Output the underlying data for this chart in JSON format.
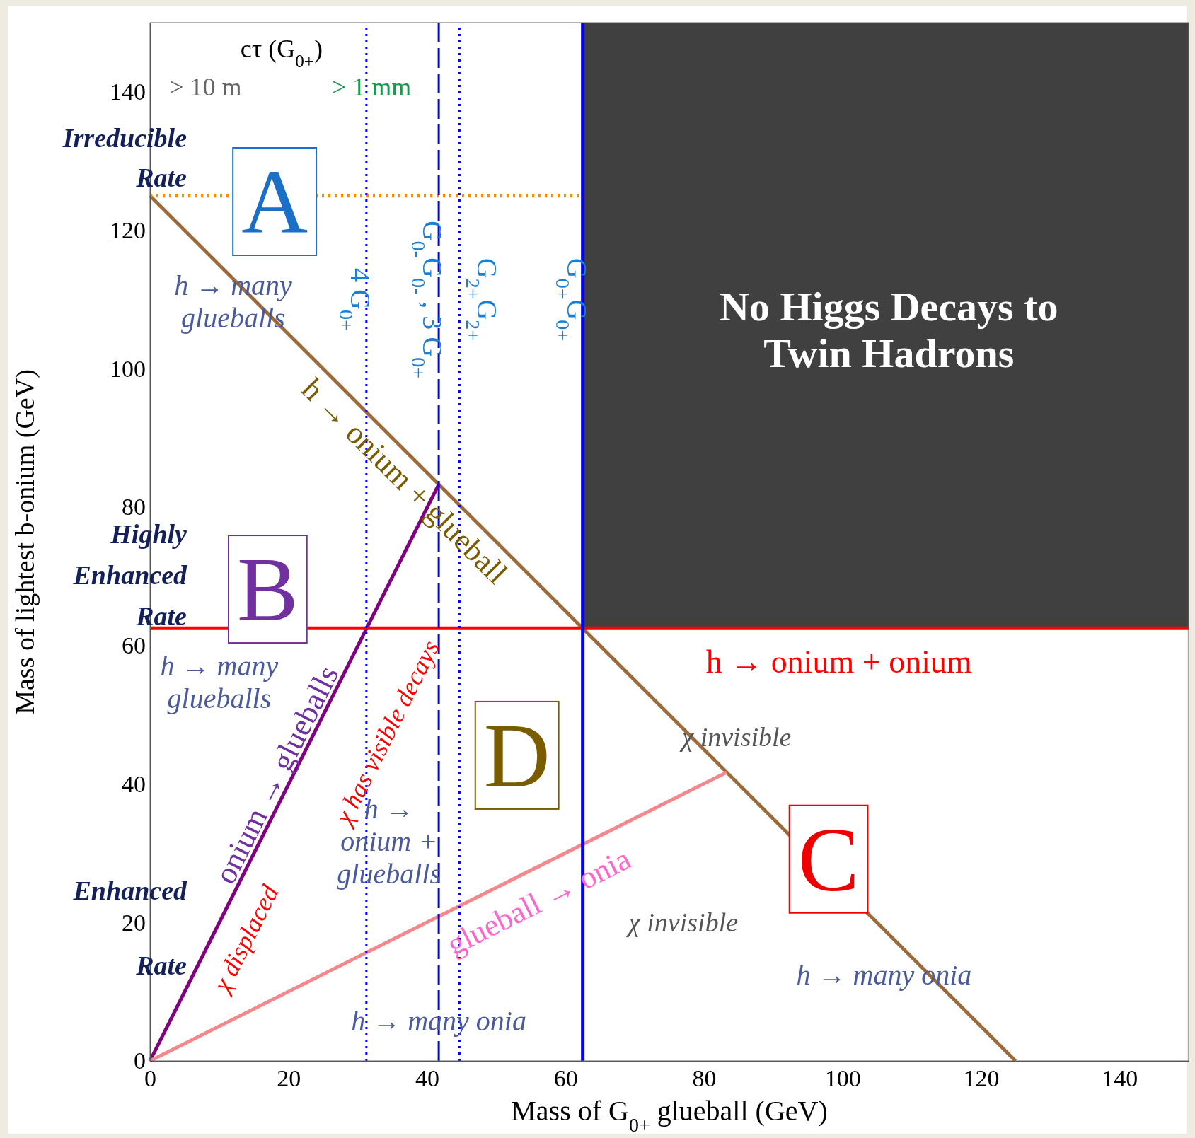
{
  "chart_data": {
    "type": "line",
    "xlabel": "Mass of G$_{0+}$ glueball (GeV)",
    "ylabel": "Mass of lightest b-onium (GeV)",
    "xlim": [
      0,
      150
    ],
    "ylim": [
      0,
      150
    ],
    "xticks": [
      0,
      20,
      40,
      60,
      80,
      100,
      120,
      140
    ],
    "yticks": [
      0,
      20,
      40,
      60,
      80,
      100,
      120,
      140
    ],
    "series": [
      {
        "color": "#9c6b3c",
        "x": [
          0,
          125
        ],
        "values": [
          125,
          0
        ]
      },
      {
        "color": "#800080",
        "x": [
          0,
          41.7
        ],
        "values": [
          0,
          83.3
        ]
      },
      {
        "color": "#f4888c",
        "x": [
          0,
          83.3
        ],
        "values": [
          0,
          41.7
        ]
      },
      {
        "color": "#ff8c00",
        "x": [
          0,
          62.5
        ],
        "values": [
          125,
          125
        ],
        "line_style": "dotted"
      }
    ],
    "ref_lines": [
      {
        "axis": "y",
        "value": 62.5,
        "color": "#ff0000",
        "line_style": "solid"
      },
      {
        "axis": "x",
        "value": 62.5,
        "color": "#0000ff",
        "line_style": "solid",
        "label": "G$_{0+}$G$_{0+}$"
      },
      {
        "axis": "x",
        "value": 31.25,
        "color": "#0000ff",
        "line_style": "dotted",
        "label": "4 G$_{0+}$"
      },
      {
        "axis": "x",
        "value": 41.7,
        "color": "#0000ff",
        "line_style": "dashed",
        "label": "G$_{0-}$G$_{0-}$ , 3 G$_{0+}$"
      },
      {
        "axis": "x",
        "value": 44.7,
        "color": "#0000ff",
        "line_style": "dotted",
        "label": "G$_{2+}$G$_{2+}$"
      }
    ],
    "annotations": [
      "cτ (G$_{0+}$)",
      "> 10 m",
      "> 1 mm",
      "A",
      "B",
      "C",
      "D",
      "No Higgs Decays to\nTwin Hadrons",
      "h → many\nglueballs",
      "h → onium + glueball",
      "h → onium + onium",
      "χ  invisible",
      "h → many\nglueballs",
      "onium → glueballs",
      "χ has visible decays",
      "χ displaced",
      "h →\nonium +\nglueballs",
      "glueball → onia",
      "χ invisible",
      "h → many onia",
      "h → many onia",
      "Irreducible\nRate",
      "Highly\nEnhanced\nRate",
      "Enhanced\nRate"
    ]
  }
}
